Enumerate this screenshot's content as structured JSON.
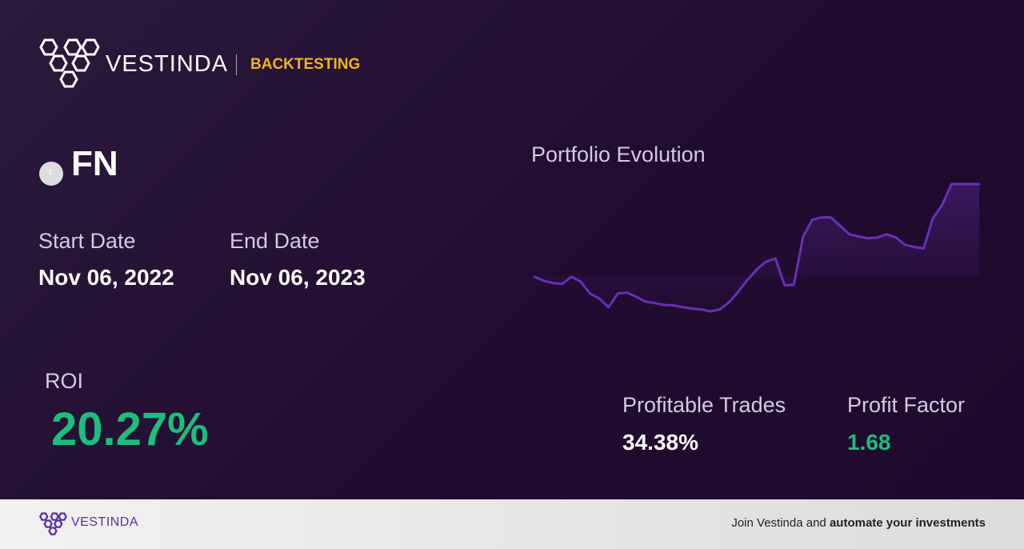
{
  "header": {
    "brand": "VESTINDA",
    "section": "BACKTESTING"
  },
  "asset": {
    "icon_letter": "F",
    "ticker": "FN"
  },
  "dates": {
    "start_label": "Start Date",
    "start_value": "Nov 06, 2022",
    "end_label": "End Date",
    "end_value": "Nov 06, 2023"
  },
  "metrics": {
    "roi_label": "ROI",
    "roi_value": "20.27%",
    "profitable_trades_label": "Profitable Trades",
    "profitable_trades_value": "34.38%",
    "profit_factor_label": "Profit Factor",
    "profit_factor_value": "1.68"
  },
  "chart_data": {
    "type": "line",
    "title": "Portfolio Evolution",
    "color": "#6a2fb8",
    "values": [
      0,
      -0.9,
      -1.4,
      -1.6,
      0,
      -1.1,
      -3.7,
      -4.8,
      -6.7,
      -3.7,
      -3.5,
      -4.4,
      -5.5,
      -5.8,
      -6.2,
      -6.3,
      -6.7,
      -7.0,
      -7.2,
      -7.6,
      -7.2,
      -5.6,
      -3.3,
      -0.7,
      1.6,
      3.3,
      4.0,
      -1.9,
      -1.8,
      8.8,
      12.5,
      13.0,
      13.0,
      11.1,
      9.3,
      8.8,
      8.4,
      8.6,
      9.3,
      8.6,
      7.0,
      6.5,
      6.2,
      12.8,
      15.7,
      20.3,
      20.3,
      20.3,
      20.3
    ]
  },
  "footer": {
    "brand": "VESTINDA",
    "cta_plain": "Join Vestinda and",
    "cta_bold": "automate your investments"
  }
}
